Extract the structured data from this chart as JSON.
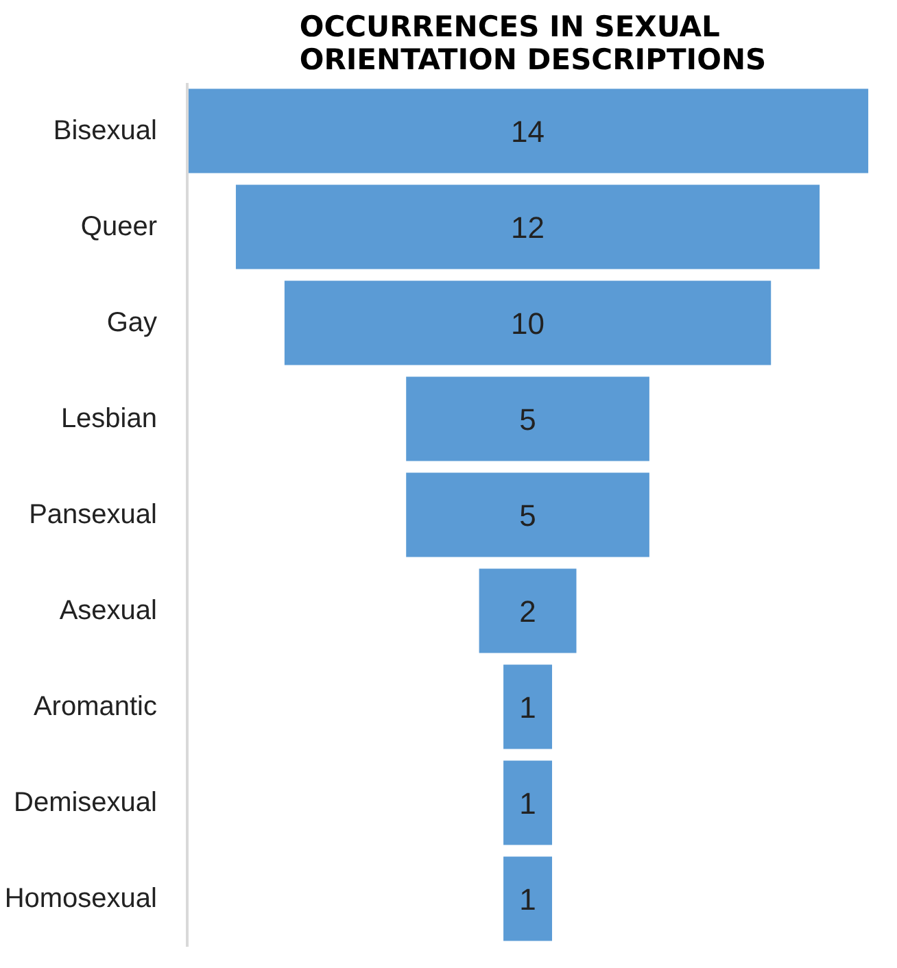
{
  "chart_data": {
    "type": "other",
    "title": "OCCURRENCES IN SEXUAL ORIENTATION DESCRIPTIONS",
    "categories": [
      "Bisexual",
      "Queer",
      "Gay",
      "Lesbian",
      "Pansexual",
      "Asexual",
      "Aromantic",
      "Demisexual",
      "Homosexual"
    ],
    "values": [
      14,
      12,
      10,
      5,
      5,
      2,
      1,
      1,
      1
    ],
    "color": "#5b9bd5",
    "data_labels": true
  }
}
